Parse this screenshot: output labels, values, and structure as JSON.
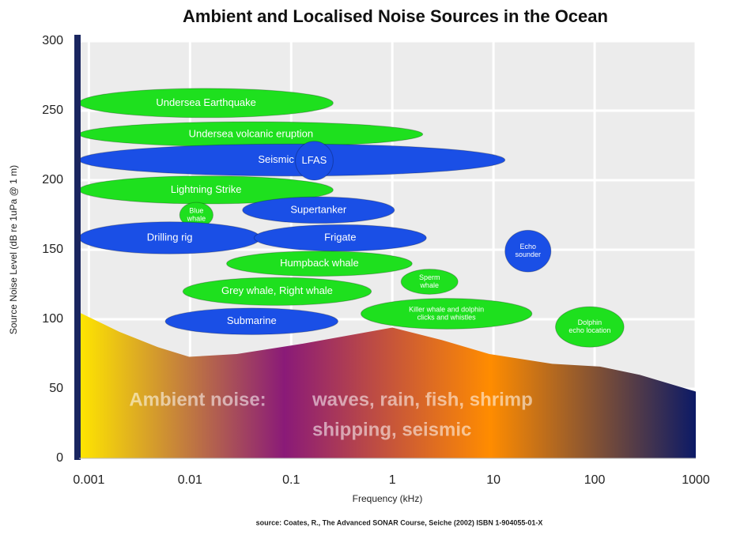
{
  "chart_data": {
    "type": "noise-map",
    "title": "Ambient and Localised Noise Sources in the Ocean",
    "xlabel": "Frequency (kHz)",
    "ylabel": "Source Noise Level (dB re 1uPa @ 1 m)",
    "source": "source:  Coates, R., The Advanced SONAR Course, Seiche (2002) ISBN 1-904055-01-X",
    "xscale": "log",
    "xlim": [
      0.0008,
      1000
    ],
    "xticks": [
      0.001,
      0.01,
      0.1,
      1,
      10,
      100,
      1000
    ],
    "ylim": [
      0,
      300
    ],
    "yticks": [
      0,
      50,
      100,
      150,
      200,
      250,
      300
    ],
    "grid": true,
    "ambient": {
      "x": [
        0.0008,
        0.002,
        0.0048,
        0.0098,
        0.029,
        0.12,
        1.0,
        3.1,
        9.1,
        38,
        113,
        280,
        1000
      ],
      "y": [
        105,
        91,
        80,
        73,
        75,
        82,
        94,
        85,
        75,
        68,
        66,
        60,
        48
      ],
      "colors": [
        "#ffe600",
        "#8a1a78",
        "#ff8c00",
        "#0c1a66"
      ],
      "texts": [
        "Ambient noise:",
        "waves, rain, fish, shrimp",
        "shipping, seismic"
      ]
    },
    "sources": [
      {
        "label": [
          "Undersea Earthquake"
        ],
        "color": "#1ee01e",
        "x": [
          0.0008,
          0.26
        ],
        "y": [
          245,
          266
        ]
      },
      {
        "label": [
          "Undersea volcanic eruption"
        ],
        "color": "#1ee01e",
        "x": [
          0.0008,
          2.0
        ],
        "y": [
          224,
          242
        ]
      },
      {
        "label": [
          "Seismic Airgun"
        ],
        "color": "#1a4fe6",
        "x": [
          0.0008,
          13
        ],
        "y": [
          203,
          226
        ]
      },
      {
        "label": [
          "LFAS"
        ],
        "color": "#1a4fe6",
        "x": [
          0.11,
          0.26
        ],
        "y": [
          200,
          228
        ]
      },
      {
        "label": [
          "Lightning Strike"
        ],
        "color": "#1ee01e",
        "x": [
          0.0008,
          0.26
        ],
        "y": [
          183,
          203
        ]
      },
      {
        "label": [
          "Blue",
          "whale"
        ],
        "color": "#1ee01e",
        "x": [
          0.0079,
          0.0169
        ],
        "y": [
          166,
          184
        ]
      },
      {
        "label": [
          "Supertanker"
        ],
        "color": "#1a4fe6",
        "x": [
          0.033,
          1.05
        ],
        "y": [
          169,
          188
        ]
      },
      {
        "label": [
          "Drilling rig"
        ],
        "color": "#1a4fe6",
        "x": [
          0.0008,
          0.0496
        ],
        "y": [
          147,
          170
        ]
      },
      {
        "label": [
          "Frigate"
        ],
        "color": "#1a4fe6",
        "x": [
          0.043,
          2.17
        ],
        "y": [
          149,
          168
        ]
      },
      {
        "label": [
          "Humpback whale"
        ],
        "color": "#1ee01e",
        "x": [
          0.023,
          1.57
        ],
        "y": [
          131,
          149
        ]
      },
      {
        "label": [
          "Sperm",
          "whale"
        ],
        "color": "#1ee01e",
        "x": [
          1.22,
          4.45
        ],
        "y": [
          118,
          136
        ]
      },
      {
        "label": [
          "Echo",
          "sounder"
        ],
        "color": "#1a4fe6",
        "x": [
          13,
          37
        ],
        "y": [
          134,
          164
        ]
      },
      {
        "label": [
          "Grey whale, Right whale"
        ],
        "color": "#1ee01e",
        "x": [
          0.0085,
          0.62
        ],
        "y": [
          110,
          130
        ]
      },
      {
        "label": [
          "Killer whale and dolphin",
          "clicks and whistles"
        ],
        "color": "#1ee01e",
        "x": [
          0.49,
          24
        ],
        "y": [
          93,
          115
        ]
      },
      {
        "label": [
          "Submarine"
        ],
        "color": "#1a4fe6",
        "x": [
          0.0057,
          0.29
        ],
        "y": [
          89,
          108
        ]
      },
      {
        "label": [
          "Dolphin",
          "echo location"
        ],
        "color": "#1ee01e",
        "x": [
          41,
          195
        ],
        "y": [
          80,
          109
        ]
      }
    ]
  }
}
